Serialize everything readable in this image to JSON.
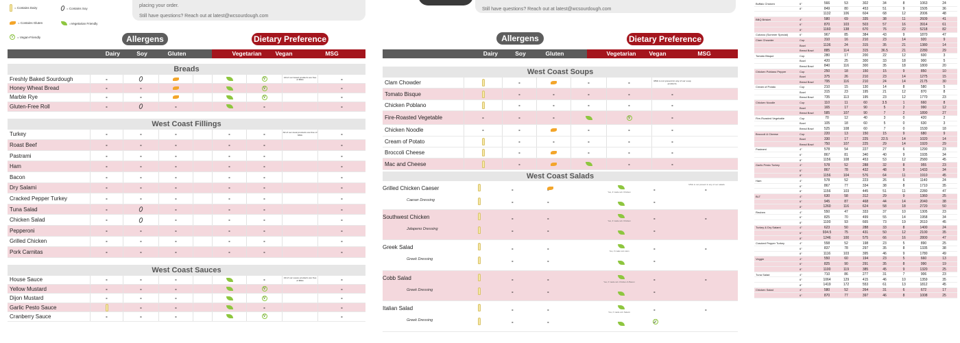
{
  "legend": {
    "dairy": "= Contains Dairy",
    "soy": "= Contains Soy",
    "gluten": "= Contains Gluten",
    "vegetarian": "=Vegetarian Friendly",
    "vegan": "= Vegan-Friendly"
  },
  "note_left": {
    "line1": "placing your order.",
    "line2": "Still have questions? Reach out at latest@wcsourdough.com"
  },
  "note_right": {
    "line2": "Still have questions? Reach out at latest@wcsourdough.com"
  },
  "header": {
    "allergens": "Allergens",
    "dietary": "Dietary Preference",
    "cols": [
      "Dairy",
      "Soy",
      "Gluten",
      "Vegetarian",
      "Vegan",
      "MSG"
    ]
  },
  "left": {
    "sections": [
      {
        "title": "Breads",
        "note": "All of our bread products are free of MSG",
        "items": [
          "Freshly Baked Sourdough",
          "Honey Wheat Bread",
          "Marble Rye",
          "Gluten-Free Roll"
        ]
      },
      {
        "title": "West Coast Fillings",
        "note": "All of our meat products are free of MSG",
        "items": [
          "Turkey",
          "Roast Beef",
          "Pastrami",
          "Ham",
          "Bacon",
          "Dry Salami",
          "Cracked Pepper Turkey",
          "Tuna Salad",
          "Chicken Salad",
          "Pepperoni",
          "Grilled Chicken",
          "Pork Carnitas"
        ]
      },
      {
        "title": "West Coast Sauces",
        "note": "All of our sauce products are free of MSG",
        "items": [
          "House Sauce",
          "Yellow Mustard",
          "Dijon Mustard",
          "Garlic Pesto Sauce",
          "Cranberry Sauce"
        ]
      }
    ]
  },
  "right": {
    "soups": {
      "title": "West Coast Soups",
      "note": "MSG is not present in any of our soup products.",
      "items": [
        "Clam Chowder",
        "Tomato Bisque",
        "Chicken Poblano",
        "Fire-Roasted Vegetable",
        "Chicken Noodle",
        "Cream of Potato",
        "Broccoli Cheese",
        "Mac and Cheese"
      ]
    },
    "salads": {
      "title": "West Coast Salads",
      "note": "MSG is not present in any of our salads",
      "items": [
        {
          "name": "Grilled Chicken Caeser",
          "dressing": "Caeser Dressing",
          "veg": "Yes, if made w/o Chicken"
        },
        {
          "name": "Southwest Chicken",
          "dressing": "Jalapeno Dressing",
          "veg": "Yes, if made w/o Chicken"
        },
        {
          "name": "Greek Salad",
          "dressing": "Greek Dressing",
          "veg": "Yes, if made w/o Ham"
        },
        {
          "name": "Cobb Salad",
          "dressing": "Greek Dressing",
          "veg": "Yes, if made w/o Chicken & Bacon"
        },
        {
          "name": "Italian Salad",
          "dressing": "Greek Dressing",
          "veg": "Yes, if made w/o Salami"
        }
      ]
    }
  },
  "dash": "-",
  "vegan_letter": "V",
  "nutrition": [
    {
      "name": "Buffalo Chicken",
      "rows": [
        [
          "6\"",
          "566",
          "53",
          "302",
          "34",
          "8",
          "1063",
          "24"
        ],
        [
          "8\"",
          "849",
          "80",
          "453",
          "51",
          "9",
          "1505",
          "36"
        ],
        [
          "",
          "1132",
          "106",
          "604",
          "68",
          "12",
          "2006",
          "48"
        ]
      ]
    },
    {
      "name": "BBQ Brisket",
      "rows": [
        [
          "4\"",
          "580",
          "69",
          "335",
          "38",
          "11",
          "2609",
          "41"
        ],
        [
          "6\"",
          "870",
          "103",
          "503",
          "57",
          "16",
          "3914",
          "61"
        ],
        [
          "8\"",
          "1160",
          "138",
          "670",
          "76",
          "22",
          "5218",
          "82"
        ]
      ]
    },
    {
      "name": "Cubano (Summer Special)",
      "rows": [
        [
          "6\"",
          "967",
          "85",
          "384",
          "43",
          "9",
          "1870",
          "47"
        ]
      ]
    },
    {
      "name": "Clam Chowder",
      "rows": [
        [
          "Cup",
          "310",
          "16",
          "210",
          "23",
          "14",
          "920",
          "9"
        ],
        [
          "Bowl",
          "1136",
          "24",
          "315",
          "35",
          "21",
          "1380",
          "14"
        ],
        [
          "Bread Bowl",
          "885",
          "114",
          "315",
          "36.5",
          "21",
          "2280",
          "29"
        ]
      ]
    },
    {
      "name": "Tomato Bisque",
      "rows": [
        [
          "Cup",
          "280",
          "17",
          "200",
          "22",
          "12",
          "600",
          "3"
        ],
        [
          "Bowl",
          "420",
          "25",
          "300",
          "33",
          "18",
          "900",
          "5"
        ],
        [
          "Bread Bowl",
          "840",
          "116",
          "300",
          "35",
          "18",
          "1800",
          "20"
        ]
      ]
    },
    {
      "name": "Chicken Poblano Pepper",
      "rows": [
        [
          "Cup",
          "250",
          "18",
          "150",
          "15",
          "9",
          "850",
          "10"
        ],
        [
          "Bowl",
          "375",
          "26",
          "210",
          "23",
          "14",
          "1275",
          "15"
        ],
        [
          "Bread Bowl",
          "795",
          "116",
          "210",
          "24",
          "14",
          "2175",
          "30"
        ]
      ]
    },
    {
      "name": "Cream of Potato",
      "rows": [
        [
          "Cup",
          "210",
          "15",
          "130",
          "14",
          "8",
          "580",
          "5"
        ],
        [
          "Bowl",
          "315",
          "23",
          "195",
          "21",
          "12",
          "870",
          "8"
        ],
        [
          "Bread Bowl",
          "735",
          "113",
          "195",
          "23",
          "12",
          "1770",
          "23"
        ]
      ]
    },
    {
      "name": "Chicken Noodle",
      "rows": [
        [
          "Cup",
          "110",
          "11",
          "60",
          "3.5",
          "1",
          "660",
          "8"
        ],
        [
          "Bowl",
          "165",
          "17",
          "90",
          "5",
          "2",
          "990",
          "12"
        ],
        [
          "Bread Bowl",
          "585",
          "107",
          "90",
          "7",
          "2",
          "1890",
          "27"
        ]
      ]
    },
    {
      "name": "Fire-Roasted Vegetable",
      "rows": [
        [
          "Cup",
          "70",
          "12",
          "40",
          "3",
          "0",
          "420",
          "2"
        ],
        [
          "Bowl",
          "105",
          "18",
          "60",
          "5",
          "0",
          "630",
          "3"
        ],
        [
          "Bread Bowl",
          "525",
          "108",
          "60",
          "7",
          "0",
          "1530",
          "18"
        ]
      ]
    },
    {
      "name": "Broccoli & Cheese",
      "rows": [
        [
          "Cup",
          "220",
          "13",
          "150",
          "15",
          "9",
          "680",
          "9"
        ],
        [
          "Bowl",
          "330",
          "17",
          "225",
          "22.5",
          "14",
          "1020",
          "14"
        ],
        [
          "Bread Bowl",
          "750",
          "107",
          "225",
          "29",
          "14",
          "1920",
          "29"
        ]
      ]
    },
    {
      "name": "Pastrami",
      "rows": [
        [
          "4\"",
          "578",
          "54",
          "227",
          "27",
          "6",
          "1290",
          "23"
        ],
        [
          "6\"",
          "867",
          "81",
          "340",
          "40",
          "9",
          "1935",
          "34"
        ],
        [
          "8\"",
          "1156",
          "108",
          "453",
          "53",
          "12",
          "2580",
          "45"
        ]
      ]
    },
    {
      "name": "Garlic Pesto Turkey",
      "rows": [
        [
          "4\"",
          "578",
          "52",
          "288",
          "32",
          "8",
          "955",
          "23"
        ],
        [
          "6\"",
          "867",
          "78",
          "432",
          "48",
          "9",
          "1433",
          "34"
        ],
        [
          "8\"",
          "1156",
          "104",
          "576",
          "64",
          "11",
          "1910",
          "45"
        ]
      ]
    },
    {
      "name": "Ham",
      "rows": [
        [
          "4\"",
          "578",
          "52",
          "223",
          "26",
          "6",
          "1140",
          "24"
        ],
        [
          "6\"",
          "867",
          "77",
          "334",
          "38",
          "8",
          "1710",
          "35"
        ],
        [
          "8\"",
          "1156",
          "103",
          "445",
          "51",
          "11",
          "2280",
          "47"
        ]
      ]
    },
    {
      "name": "BLT",
      "rows": [
        [
          "4\"",
          "630",
          "58",
          "312",
          "29",
          "9",
          "1360",
          "25"
        ],
        [
          "6\"",
          "945",
          "87",
          "468",
          "44",
          "14",
          "2040",
          "38"
        ],
        [
          "8\"",
          "1260",
          "116",
          "624",
          "58",
          "18",
          "2720",
          "50"
        ]
      ]
    },
    {
      "name": "Reuben",
      "rows": [
        [
          "4\"",
          "550",
          "47",
          "333",
          "37",
          "10",
          "1305",
          "23"
        ],
        [
          "6\"",
          "825",
          "70",
          "499",
          "55",
          "14",
          "1958",
          "34"
        ],
        [
          "8\"",
          "1100",
          "93",
          "665",
          "73",
          "19",
          "2610",
          "45"
        ]
      ]
    },
    {
      "name": "Turkey & Dry Salami",
      "rows": [
        [
          "4\"",
          "623",
          "50",
          "288",
          "33",
          "8",
          "1400",
          "24"
        ],
        [
          "6\"",
          "934.5",
          "75",
          "431",
          "50",
          "12",
          "2100",
          "35"
        ],
        [
          "8\"",
          "1246",
          "100",
          "575",
          "66",
          "16",
          "2800",
          "47"
        ]
      ]
    },
    {
      "name": "Cracked Pepper Turkey",
      "rows": [
        [
          "4\"",
          "558",
          "52",
          "198",
          "23",
          "5",
          "890",
          "25"
        ],
        [
          "6\"",
          "837",
          "78",
          "297",
          "35",
          "8",
          "1335",
          "38"
        ],
        [
          "8\"",
          "1116",
          "103",
          "395",
          "46",
          "9",
          "1780",
          "49"
        ]
      ]
    },
    {
      "name": "Veggie",
      "rows": [
        [
          "4\"",
          "550",
          "60",
          "194",
          "23",
          "5",
          "660",
          "13"
        ],
        [
          "6\"",
          "825",
          "90",
          "291",
          "35",
          "8",
          "990",
          "19"
        ],
        [
          "8\"",
          "1100",
          "119",
          "385",
          "45",
          "9",
          "1320",
          "25"
        ]
      ]
    },
    {
      "name": "Tuna Salad",
      "rows": [
        [
          "4\"",
          "710",
          "86",
          "277",
          "31",
          "7",
          "906",
          "23"
        ],
        [
          "6\"",
          "1064",
          "129",
          "415",
          "46",
          "10",
          "1359",
          "35"
        ],
        [
          "8\"",
          "1419",
          "172",
          "553",
          "61",
          "13",
          "1812",
          "45"
        ]
      ]
    },
    {
      "name": "Chicken Salad",
      "rows": [
        [
          "4\"",
          "580",
          "52",
          "264",
          "31",
          "6",
          "672",
          "17"
        ],
        [
          "6\"",
          "870",
          "77",
          "397",
          "46",
          "8",
          "1008",
          "25"
        ]
      ]
    }
  ]
}
